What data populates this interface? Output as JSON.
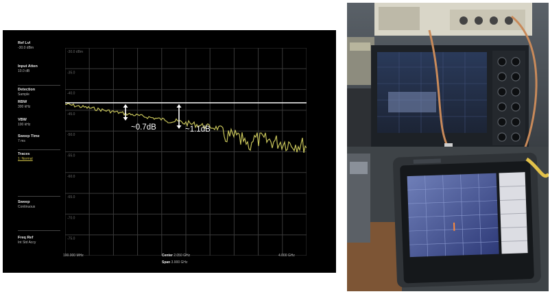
{
  "analyzer": {
    "sidebar": [
      {
        "title": "Ref Lvl",
        "value": "-30.0 dBm"
      },
      {
        "title": "Input Atten",
        "value": "10.0 dB"
      },
      {
        "title": "Detection",
        "value": "Sample"
      },
      {
        "title": "RBW",
        "value": "300 kHz"
      },
      {
        "title": "VBW",
        "value": "100 kHz"
      },
      {
        "title": "Sweep Time",
        "value": "7 ms"
      },
      {
        "title": "Traces",
        "value": "1: Normal"
      },
      {
        "title": "Sweep",
        "value": "Continuous"
      },
      {
        "title": "Freq Ref",
        "value": "Int Std Accy"
      }
    ],
    "y_ticks": [
      "-30.0 dBm",
      "-35.0",
      "-40.0",
      "-45.0",
      "-50.0",
      "-55.0",
      "-60.0",
      "-65.0",
      "-70.0",
      "-75.0"
    ],
    "footer": {
      "start": "100.000 MHz",
      "center_label": "Center",
      "center_value": "2.050 GHz",
      "span_label": "Span",
      "span_value": "3.900 GHz",
      "stop": "4.000 GHz"
    },
    "annotations": {
      "first": "~0.7dB",
      "second": "~1.1dB"
    },
    "colors": {
      "background": "#000000",
      "grid": "#3a3a3a",
      "trace": "#c7c45a",
      "reference_line": "#ffffff"
    }
  },
  "photo": {
    "description_icon": "lab-bench-photo-icon"
  }
}
